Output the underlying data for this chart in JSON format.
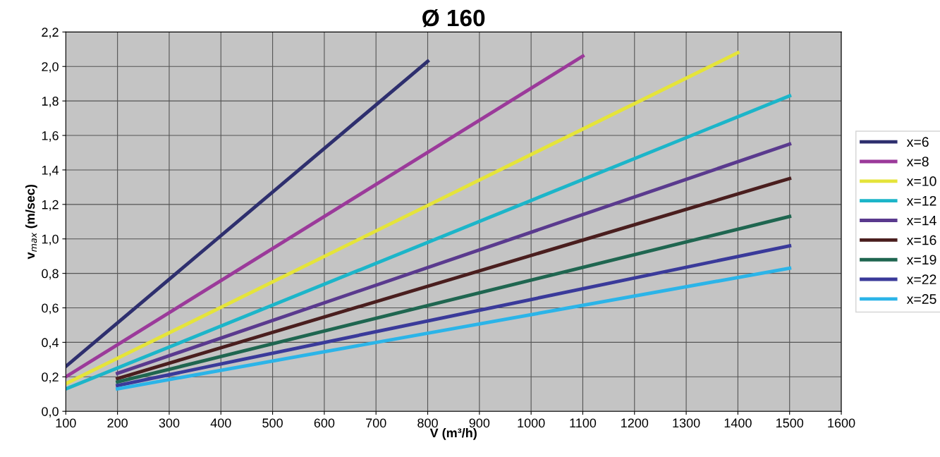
{
  "chart_data": {
    "type": "line",
    "title": "Ø 160",
    "xlabel": "V (m³/h)",
    "ylabel": "v$_{max}$ (m/sec)",
    "xlim": [
      100,
      1600
    ],
    "xticks": [
      100,
      200,
      300,
      400,
      500,
      600,
      700,
      800,
      900,
      1000,
      1100,
      1200,
      1300,
      1400,
      1500,
      1600
    ],
    "ylim": [
      0,
      2.2
    ],
    "yticks": [
      {
        "value": 0,
        "label": "0,0"
      },
      {
        "value": 0.2,
        "label": "0,2"
      },
      {
        "value": 0.4,
        "label": "0,4"
      },
      {
        "value": 0.6,
        "label": "0,6"
      },
      {
        "value": 0.8,
        "label": "0,8"
      },
      {
        "value": 1.0,
        "label": "1,0"
      },
      {
        "value": 1.2,
        "label": "1,2"
      },
      {
        "value": 1.4,
        "label": "1,4"
      },
      {
        "value": 1.6,
        "label": "1,6"
      },
      {
        "value": 1.8,
        "label": "1,8"
      },
      {
        "value": 2.0,
        "label": "2,0"
      },
      {
        "value": 2.2,
        "label": "2,2"
      }
    ],
    "grid": true,
    "legend": "right",
    "marker": "none",
    "line_style": "solid",
    "series": [
      {
        "name": "x=6",
        "color": "#2e2f6e",
        "x": [
          100,
          800
        ],
        "values": [
          0.26,
          2.03
        ]
      },
      {
        "name": "x=8",
        "color": "#9b3a9a",
        "x": [
          100,
          1100
        ],
        "values": [
          0.2,
          2.06
        ]
      },
      {
        "name": "x=10",
        "color": "#e5e43a",
        "x": [
          100,
          1400
        ],
        "values": [
          0.16,
          2.08
        ]
      },
      {
        "name": "x=12",
        "color": "#1cb5c9",
        "x": [
          100,
          1500
        ],
        "values": [
          0.13,
          1.83
        ]
      },
      {
        "name": "x=14",
        "color": "#5a3a8e",
        "x": [
          200,
          1500
        ],
        "values": [
          0.22,
          1.55
        ]
      },
      {
        "name": "x=16",
        "color": "#4a1e1e",
        "x": [
          200,
          1500
        ],
        "values": [
          0.19,
          1.35
        ]
      },
      {
        "name": "x=19",
        "color": "#1f6650",
        "x": [
          200,
          1500
        ],
        "values": [
          0.17,
          1.13
        ]
      },
      {
        "name": "x=22",
        "color": "#3a3a9a",
        "x": [
          200,
          1500
        ],
        "values": [
          0.15,
          0.96
        ]
      },
      {
        "name": "x=25",
        "color": "#2bb4e8",
        "x": [
          200,
          1500
        ],
        "values": [
          0.13,
          0.83
        ]
      }
    ]
  }
}
